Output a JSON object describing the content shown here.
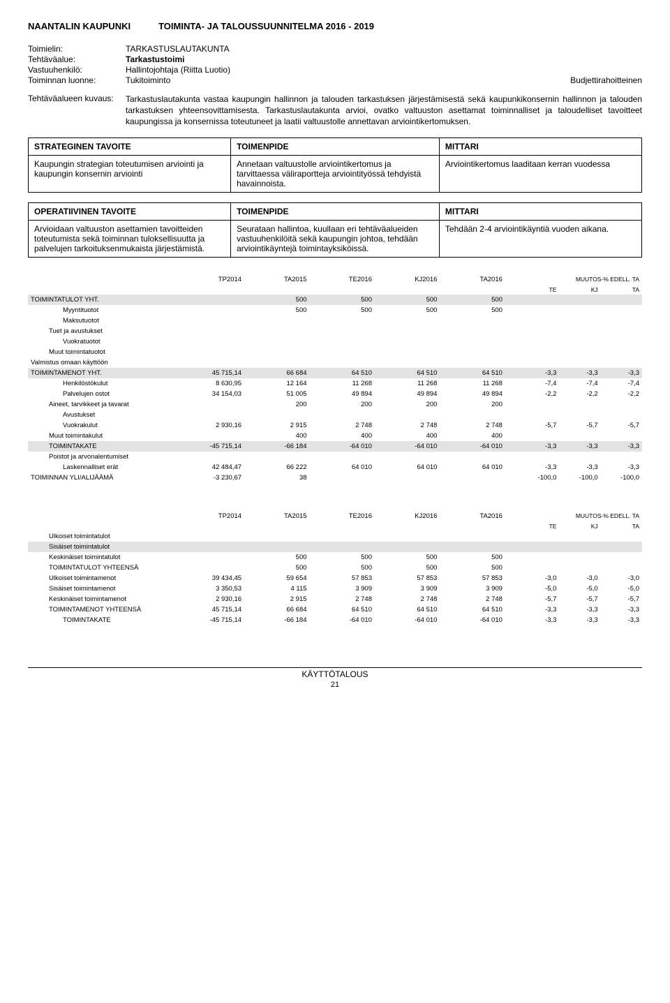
{
  "header": {
    "org": "NAANTALIN KAUPUNKI",
    "title": "TOIMINTA- JA TALOUSSUUNNITELMA 2016 - 2019"
  },
  "meta": {
    "rows": [
      {
        "label": "Toimielin:",
        "value": "TARKASTUSLAUTAKUNTA"
      },
      {
        "label": "Tehtäväalue:",
        "value": "Tarkastustoimi",
        "bold": true
      },
      {
        "label": "Vastuuhenkilö:",
        "value": "Hallintojohtaja (Riitta Luotio)"
      },
      {
        "label": "Toiminnan luonne:",
        "value": "Tukitoiminto",
        "right": "Budjettirahoitteinen"
      }
    ]
  },
  "desc": {
    "label": "Tehtäväalueen kuvaus:",
    "text": "Tarkastuslautakunta vastaa kaupungin hallinnon ja talouden tarkastuksen järjestämisestä sekä kaupunkikonsernin hallinnon ja talouden tarkastuksen yhteensovittamisesta. Tarkastuslautakunta arvioi, ovatko valtuuston asettamat toiminnalliset ja taloudelliset tavoitteet kaupungissa ja konsernissa toteutuneet ja laatii valtuustolle annettavan arviointikertomuksen."
  },
  "goals": {
    "strategic": {
      "h1": "STRATEGINEN TAVOITE",
      "h2": "TOIMENPIDE",
      "h3": "MITTARI",
      "c1": "Kaupungin strategian toteutumisen arviointi ja kaupungin konsernin arviointi",
      "c2": "Annetaan valtuustolle arviointikertomus ja tarvittaessa väliraportteja arviointityössä tehdyistä havainnoista.",
      "c3": "Arviointikertomus laaditaan kerran vuodessa"
    },
    "operative": {
      "h1": "OPERATIIVINEN TAVOITE",
      "h2": "TOIMENPIDE",
      "h3": "MITTARI",
      "c1": "Arvioidaan valtuuston asettamien tavoitteiden toteutumista sekä toiminnan tuloksellisuutta ja palvelujen tarkoituksenmukaista järjestämistä.",
      "c2": "Seurataan hallintoa, kuullaan eri tehtäväalueiden vastuuhenkilöitä sekä kaupungin johtoa, tehdään arviointikäyntejä toimintayksiköissä.",
      "c3": "Tehdään 2-4 arviointikäyntiä vuoden aikana."
    }
  },
  "fin1": {
    "headers": [
      "TP2014",
      "TA2015",
      "TE2016",
      "KJ2016",
      "TA2016"
    ],
    "muutos_label": "MUUTOS-% EDELL. TA",
    "muutos_sub": [
      "TE",
      "KJ",
      "TA"
    ],
    "rows": [
      {
        "label": "TOIMINTATULOT YHT.",
        "shade": true,
        "vals": [
          "",
          "500",
          "500",
          "500",
          "500"
        ],
        "pct": [
          "",
          "",
          ""
        ]
      },
      {
        "label": "Myyntituotot",
        "indent": 2,
        "vals": [
          "",
          "500",
          "500",
          "500",
          "500"
        ],
        "pct": [
          "",
          "",
          ""
        ]
      },
      {
        "label": "Maksutuotot",
        "indent": 2,
        "vals": [
          "",
          "",
          "",
          "",
          ""
        ],
        "pct": [
          "",
          "",
          ""
        ]
      },
      {
        "label": "Tuet ja avustukset",
        "indent": 1,
        "vals": [
          "",
          "",
          "",
          "",
          ""
        ],
        "pct": [
          "",
          "",
          ""
        ]
      },
      {
        "label": "Vuokratuotot",
        "indent": 2,
        "vals": [
          "",
          "",
          "",
          "",
          ""
        ],
        "pct": [
          "",
          "",
          ""
        ]
      },
      {
        "label": "Muut toimintatuotot",
        "indent": 1,
        "vals": [
          "",
          "",
          "",
          "",
          ""
        ],
        "pct": [
          "",
          "",
          ""
        ]
      },
      {
        "label": "Valmistus omaan käyttöön",
        "indent": 0,
        "vals": [
          "",
          "",
          "",
          "",
          ""
        ],
        "pct": [
          "",
          "",
          ""
        ]
      },
      {
        "label": "TOIMINTAMENOT YHT.",
        "shade": true,
        "vals": [
          "45 715,14",
          "66 684",
          "64 510",
          "64 510",
          "64 510"
        ],
        "pct": [
          "-3,3",
          "-3,3",
          "-3,3"
        ]
      },
      {
        "label": "Henkilöstökulut",
        "indent": 2,
        "vals": [
          "8 630,95",
          "12 164",
          "11 268",
          "11 268",
          "11 268"
        ],
        "pct": [
          "-7,4",
          "-7,4",
          "-7,4"
        ]
      },
      {
        "label": "Palvelujen ostot",
        "indent": 2,
        "vals": [
          "34 154,03",
          "51 005",
          "49 894",
          "49 894",
          "49 894"
        ],
        "pct": [
          "-2,2",
          "-2,2",
          "-2,2"
        ]
      },
      {
        "label": "Aineet, tarvikkeet ja tavarat",
        "indent": 1,
        "vals": [
          "",
          "200",
          "200",
          "200",
          "200"
        ],
        "pct": [
          "",
          "",
          ""
        ]
      },
      {
        "label": "Avustukset",
        "indent": 2,
        "vals": [
          "",
          "",
          "",
          "",
          ""
        ],
        "pct": [
          "",
          "",
          ""
        ]
      },
      {
        "label": "Vuokrakulut",
        "indent": 2,
        "vals": [
          "2 930,16",
          "2 915",
          "2 748",
          "2 748",
          "2 748"
        ],
        "pct": [
          "-5,7",
          "-5,7",
          "-5,7"
        ]
      },
      {
        "label": "Muut toimintakulut",
        "indent": 1,
        "vals": [
          "",
          "400",
          "400",
          "400",
          "400"
        ],
        "pct": [
          "",
          "",
          ""
        ]
      },
      {
        "label": "TOIMINTAKATE",
        "shade": true,
        "indent": 1,
        "vals": [
          "-45 715,14",
          "-66 184",
          "-64 010",
          "-64 010",
          "-64 010"
        ],
        "pct": [
          "-3,3",
          "-3,3",
          "-3,3"
        ]
      },
      {
        "label": "Poistot ja arvonalentumiset",
        "indent": 1,
        "vals": [
          "",
          "",
          "",
          "",
          ""
        ],
        "pct": [
          "",
          "",
          ""
        ]
      },
      {
        "label": "Laskennalliset erät",
        "indent": 2,
        "vals": [
          "42 484,47",
          "66 222",
          "64 010",
          "64 010",
          "64 010"
        ],
        "pct": [
          "-3,3",
          "-3,3",
          "-3,3"
        ]
      },
      {
        "label": "TOIMINNAN YLI/ALIJÄÄMÄ",
        "indent": 0,
        "vals": [
          "-3 230,67",
          "38",
          "",
          "",
          ""
        ],
        "pct": [
          "-100,0",
          "-100,0",
          "-100,0"
        ]
      }
    ]
  },
  "fin2": {
    "headers": [
      "TP2014",
      "TA2015",
      "TE2016",
      "KJ2016",
      "TA2016"
    ],
    "muutos_label": "MUUTOS-% EDELL. TA",
    "muutos_sub": [
      "TE",
      "KJ",
      "TA"
    ],
    "rows": [
      {
        "label": "Ulkoiset toimintatulot",
        "indent": 1,
        "vals": [
          "",
          "",
          "",
          "",
          ""
        ],
        "pct": [
          "",
          "",
          ""
        ]
      },
      {
        "label": "Sisäiset toimintatulot",
        "indent": 1,
        "shade": true,
        "vals": [
          "",
          "",
          "",
          "",
          ""
        ],
        "pct": [
          "",
          "",
          ""
        ]
      },
      {
        "label": "Keskinäiset toimintatulot",
        "indent": 1,
        "vals": [
          "",
          "500",
          "500",
          "500",
          "500"
        ],
        "pct": [
          "",
          "",
          ""
        ]
      },
      {
        "label": "TOIMINTATULOT YHTEENSÄ",
        "indent": 1,
        "vals": [
          "",
          "500",
          "500",
          "500",
          "500"
        ],
        "pct": [
          "",
          "",
          ""
        ]
      },
      {
        "label": "Ulkoiset toimintamenot",
        "indent": 1,
        "vals": [
          "39 434,45",
          "59 654",
          "57 853",
          "57 853",
          "57 853"
        ],
        "pct": [
          "-3,0",
          "-3,0",
          "-3,0"
        ]
      },
      {
        "label": "Sisäiset toimintamenot",
        "indent": 1,
        "vals": [
          "3 350,53",
          "4 115",
          "3 909",
          "3 909",
          "3 909"
        ],
        "pct": [
          "-5,0",
          "-5,0",
          "-5,0"
        ]
      },
      {
        "label": "Keskinäiset toimintamenot",
        "indent": 1,
        "vals": [
          "2 930,16",
          "2 915",
          "2 748",
          "2 748",
          "2 748"
        ],
        "pct": [
          "-5,7",
          "-5,7",
          "-5,7"
        ]
      },
      {
        "label": "TOIMINTAMENOT YHTEENSÄ",
        "indent": 1,
        "vals": [
          "45 715,14",
          "66 684",
          "64 510",
          "64 510",
          "64 510"
        ],
        "pct": [
          "-3,3",
          "-3,3",
          "-3,3"
        ]
      },
      {
        "label": "TOIMINTAKATE",
        "indent": 2,
        "vals": [
          "-45 715,14",
          "-66 184",
          "-64 010",
          "-64 010",
          "-64 010"
        ],
        "pct": [
          "-3,3",
          "-3,3",
          "-3,3"
        ]
      }
    ]
  },
  "footer": {
    "label": "KÄYTTÖTALOUS",
    "page": "21"
  },
  "style": {
    "shade_color": "#e3e3e3",
    "font_body": 11,
    "font_header": 13,
    "font_fin": 9.5,
    "border_color": "#000000"
  }
}
